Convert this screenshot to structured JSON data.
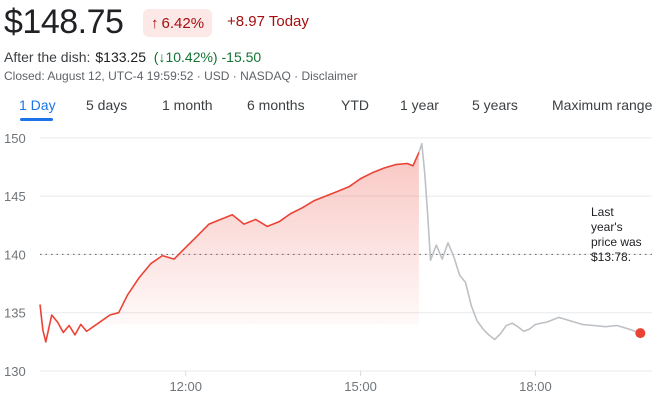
{
  "header": {
    "price": "$148.75",
    "change_pct": "6.42%",
    "change_today": "+8.97 Today",
    "after_label": "After the dish:",
    "after_price": "$133.25",
    "after_pct": "10.42%)",
    "after_change": "-15.50",
    "meta": "Closed: August 12, UTC-4 19:59:52 · USD · NASDAQ · Disclaimer"
  },
  "tabs": [
    "1 Day",
    "5 days",
    "1 month",
    "6 months",
    "YTD",
    "1 year",
    "5 years",
    "Maximum range"
  ],
  "annotation": [
    "Last",
    "year's",
    "price was",
    "$13.78."
  ],
  "colors": {
    "up": "#ea4335",
    "after": "#bdc1c6",
    "accent": "#1a73e8"
  },
  "chart_data": {
    "type": "line",
    "yticks": [
      "150",
      "145",
      "140",
      "135",
      "130"
    ],
    "ylim": [
      130,
      150.5
    ],
    "xticks": [
      "12:00",
      "15:00",
      "18:00"
    ],
    "xtick_hours": [
      12,
      15,
      18
    ],
    "xlim": [
      9.5,
      20.0
    ],
    "reference_line": 140,
    "series": [
      {
        "x": [
          9.5,
          9.55,
          9.6,
          9.7,
          9.8,
          9.9,
          10.0,
          10.1,
          10.2,
          10.3,
          10.5,
          10.7,
          10.85,
          11.0,
          11.2,
          11.4,
          11.6,
          11.8,
          12.0,
          12.2,
          12.4,
          12.6,
          12.8,
          13.0,
          13.2,
          13.4,
          13.6,
          13.8,
          14.0,
          14.2,
          14.4,
          14.6,
          14.8,
          15.0,
          15.2,
          15.4,
          15.6,
          15.8,
          15.9,
          16.0
        ],
        "y": [
          135.7,
          133.5,
          132.5,
          134.8,
          134.2,
          133.3,
          133.9,
          133.1,
          134.0,
          133.4,
          134.1,
          134.8,
          135.0,
          136.5,
          138.0,
          139.2,
          139.9,
          139.6,
          140.6,
          141.6,
          142.6,
          143.0,
          143.4,
          142.6,
          143.0,
          142.4,
          142.8,
          143.5,
          144.0,
          144.6,
          145.0,
          145.4,
          145.8,
          146.5,
          147.0,
          147.4,
          147.7,
          147.8,
          147.6,
          148.75
        ]
      },
      {
        "x": [
          16.0,
          16.05,
          16.1,
          16.15,
          16.2,
          16.3,
          16.4,
          16.5,
          16.6,
          16.7,
          16.8,
          16.9,
          17.0,
          17.1,
          17.2,
          17.3,
          17.4,
          17.5,
          17.6,
          17.7,
          17.8,
          17.9,
          18.0,
          18.2,
          18.4,
          18.6,
          18.8,
          19.0,
          19.2,
          19.4,
          19.6,
          19.8
        ],
        "y": [
          148.75,
          149.5,
          147.0,
          143.5,
          139.5,
          140.8,
          139.6,
          141.0,
          139.8,
          138.2,
          137.6,
          135.6,
          134.3,
          133.6,
          133.1,
          132.7,
          133.2,
          133.9,
          134.1,
          133.8,
          133.4,
          133.6,
          134.0,
          134.2,
          134.6,
          134.3,
          134.0,
          133.9,
          133.8,
          133.9,
          133.6,
          133.25
        ]
      }
    ]
  }
}
